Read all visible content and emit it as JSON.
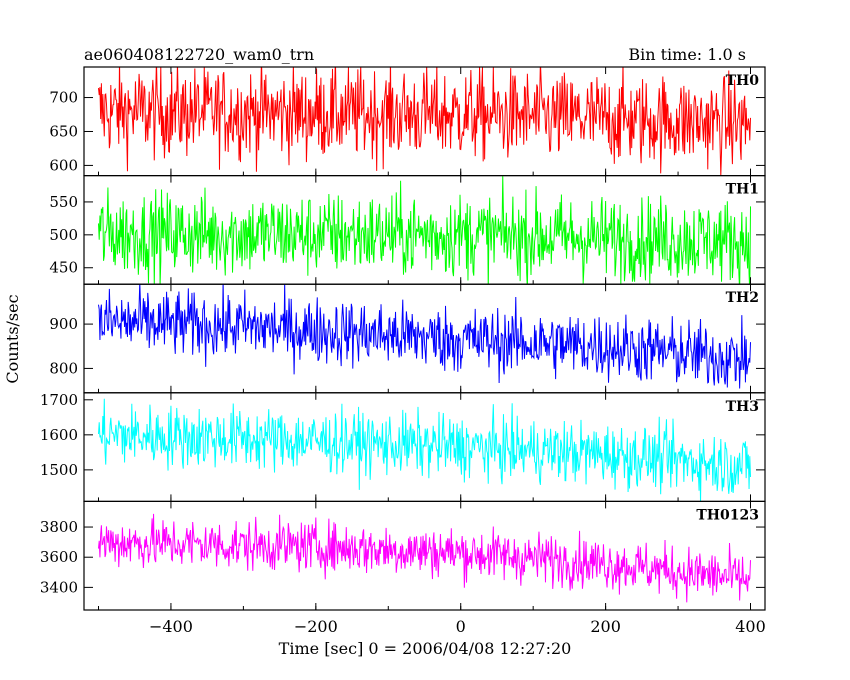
{
  "header": {
    "title": "ae060408122720_wam0_trn",
    "bin_time": "Bin time: 1.0 s"
  },
  "chart_data": {
    "type": "line",
    "title": "ae060408122720_wam0_trn",
    "xlabel": "Time [sec] 0 = 2006/04/08 12:27:20",
    "ylabel": "Counts/sec",
    "xlim": [
      -520,
      420
    ],
    "x_range": [
      -500,
      400
    ],
    "x_ticks": [
      -400,
      -200,
      0,
      200,
      400
    ],
    "x_tick_labels": [
      "−400",
      "−200",
      "0",
      "200",
      "400"
    ],
    "panels": [
      {
        "name": "TH0",
        "color": "#ff0000",
        "ylim": [
          585,
          745
        ],
        "yticks": [
          600,
          650,
          700
        ],
        "trend": [
          [
            -500,
            680
          ],
          [
            0,
            675
          ],
          [
            400,
            662
          ]
        ],
        "spread": 34
      },
      {
        "name": "TH1",
        "color": "#00ff00",
        "ylim": [
          425,
          590
        ],
        "yticks": [
          450,
          500,
          550
        ],
        "trend": [
          [
            -500,
            502
          ],
          [
            0,
            500
          ],
          [
            400,
            490
          ]
        ],
        "spread": 32
      },
      {
        "name": "TH2",
        "color": "#0000ff",
        "ylim": [
          745,
          990
        ],
        "yticks": [
          800,
          900
        ],
        "trend": [
          [
            -500,
            905
          ],
          [
            -300,
            895
          ],
          [
            0,
            865
          ],
          [
            200,
            850
          ],
          [
            400,
            820
          ]
        ],
        "spread": 38
      },
      {
        "name": "TH3",
        "color": "#00ffff",
        "ylim": [
          1410,
          1720
        ],
        "yticks": [
          1500,
          1600,
          1700
        ],
        "trend": [
          [
            -500,
            1600
          ],
          [
            -300,
            1590
          ],
          [
            0,
            1565
          ],
          [
            200,
            1545
          ],
          [
            400,
            1510
          ]
        ],
        "spread": 45
      },
      {
        "name": "TH0123",
        "color": "#ff00ff",
        "ylim": [
          3250,
          3970
        ],
        "yticks": [
          3400,
          3600,
          3800
        ],
        "trend": [
          [
            -500,
            3700
          ],
          [
            -200,
            3670
          ],
          [
            0,
            3630
          ],
          [
            200,
            3560
          ],
          [
            400,
            3450
          ]
        ],
        "spread": 85
      }
    ]
  }
}
